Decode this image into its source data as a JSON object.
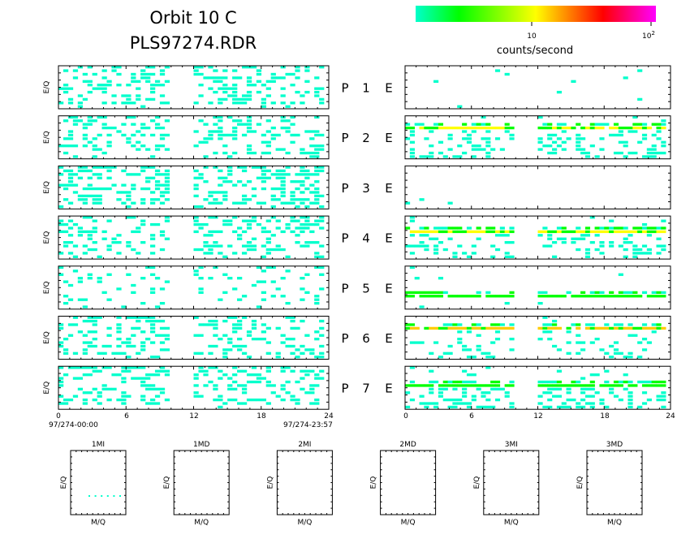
{
  "header": {
    "title_line1": "Orbit 10 C",
    "title_line2": "PLS97274.RDR"
  },
  "colorbar": {
    "label": "counts/second",
    "tick_10": "10",
    "tick_100_base": "10",
    "tick_100_exp": "2",
    "stops": [
      "#00ffcc",
      "#00ff00",
      "#ffff00",
      "#ff0000",
      "#ff00ff"
    ]
  },
  "axis": {
    "ylabel": "E/Q",
    "mq_label": "M/Q",
    "xticks": [
      "0",
      "6",
      "12",
      "18",
      "24"
    ],
    "start_time": "97/274-00:00",
    "end_time": "97/274-23:57"
  },
  "chart_data": {
    "type": "heatmap",
    "x_unit": "hours",
    "xlim": [
      0,
      24
    ],
    "data_gap_hours": [
      9.7,
      12.0
    ],
    "rows": [
      {
        "label": "P",
        "number": "1",
        "suffix": "E"
      },
      {
        "label": "P",
        "number": "2",
        "suffix": "E"
      },
      {
        "label": "P",
        "number": "3",
        "suffix": "E"
      },
      {
        "label": "P",
        "number": "4",
        "suffix": "E"
      },
      {
        "label": "P",
        "number": "5",
        "suffix": "E"
      },
      {
        "label": "P",
        "number": "6",
        "suffix": "E"
      },
      {
        "label": "P",
        "number": "7",
        "suffix": "E"
      }
    ],
    "left_panel_density": [
      0.32,
      0.3,
      0.36,
      0.34,
      0.14,
      0.3,
      0.3
    ],
    "right_panel_density": [
      0.02,
      0.25,
      0.01,
      0.22,
      0.05,
      0.16,
      0.34
    ],
    "right_band_level": [
      0,
      0.74,
      0,
      0.68,
      0.37,
      0.77,
      0.6
    ],
    "right_band_peak_colors": [
      "#00ffcc",
      "#ffff00",
      "#00ffcc",
      "#ffff00",
      "#00ff00",
      "#ffcc00",
      "#00ff00"
    ],
    "small_panels": [
      {
        "title": "1MI"
      },
      {
        "title": "1MD"
      },
      {
        "title": "2MI"
      },
      {
        "title": "2MD"
      },
      {
        "title": "3MI"
      },
      {
        "title": "3MD"
      }
    ]
  }
}
